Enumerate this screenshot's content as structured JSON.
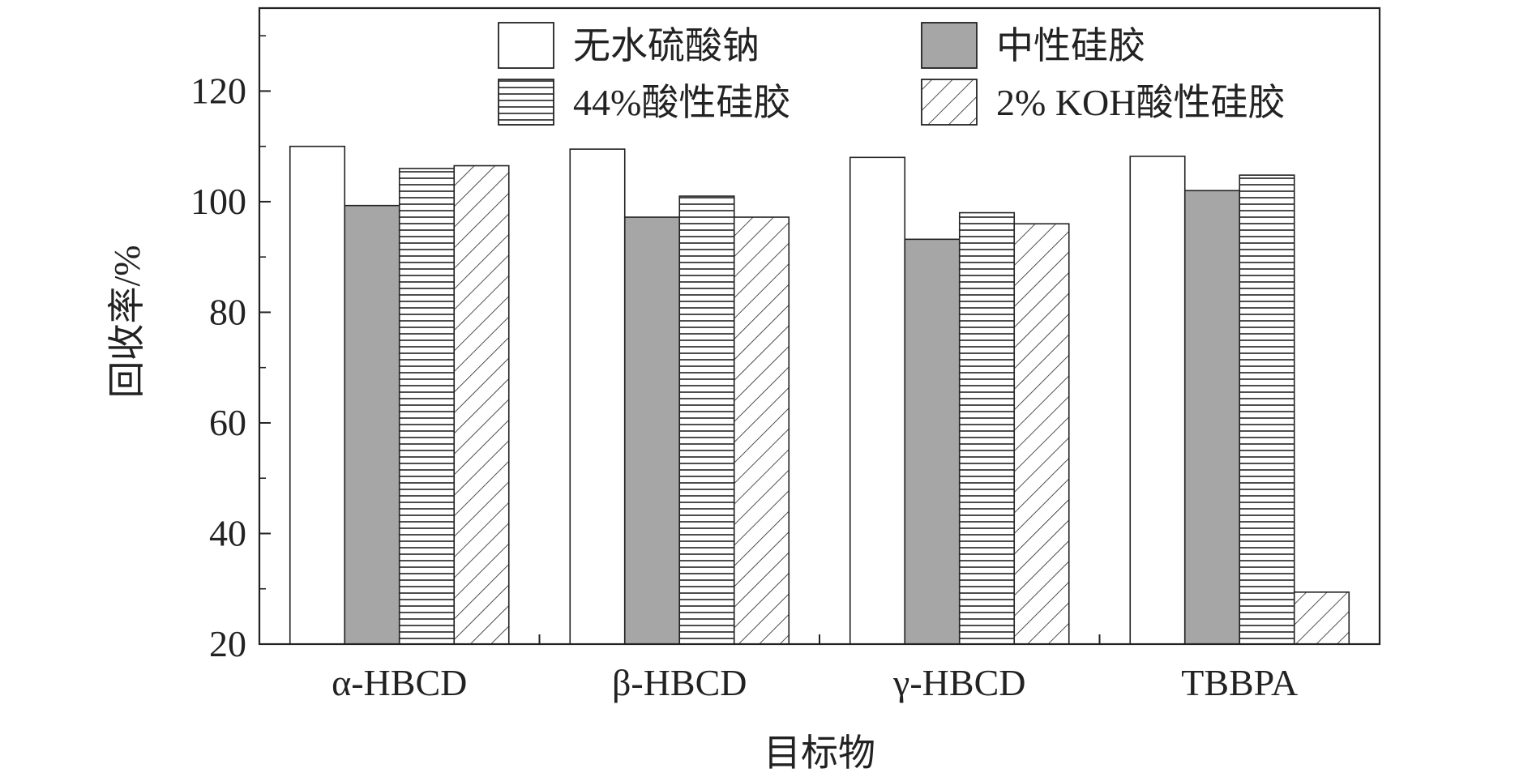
{
  "chart_data": {
    "type": "bar",
    "title": "",
    "xlabel": "目标物",
    "ylabel": "回收率/%",
    "categories": [
      "α-HBCD",
      "β-HBCD",
      "γ-HBCD",
      "TBBPA"
    ],
    "ylim": [
      20,
      135
    ],
    "yticks": [
      20,
      40,
      60,
      80,
      100,
      120
    ],
    "grid": false,
    "legend_position": "top",
    "series": [
      {
        "name": "无水硫酸钠",
        "values": [
          110,
          109.5,
          108,
          108.2
        ],
        "fill": "#ffffff",
        "pattern": "none"
      },
      {
        "name": "中性硅胶",
        "values": [
          99.3,
          97.2,
          93.2,
          102
        ],
        "fill": "#a6a6a6",
        "pattern": "none"
      },
      {
        "name": "44%酸性硅胶",
        "values": [
          106,
          101,
          98,
          104.8
        ],
        "fill": "#ffffff",
        "pattern": "horizontal"
      },
      {
        "name": "2% KOH酸性硅胶",
        "values": [
          106.5,
          97.2,
          96,
          29.4
        ],
        "fill": "#ffffff",
        "pattern": "diagonal"
      }
    ]
  }
}
